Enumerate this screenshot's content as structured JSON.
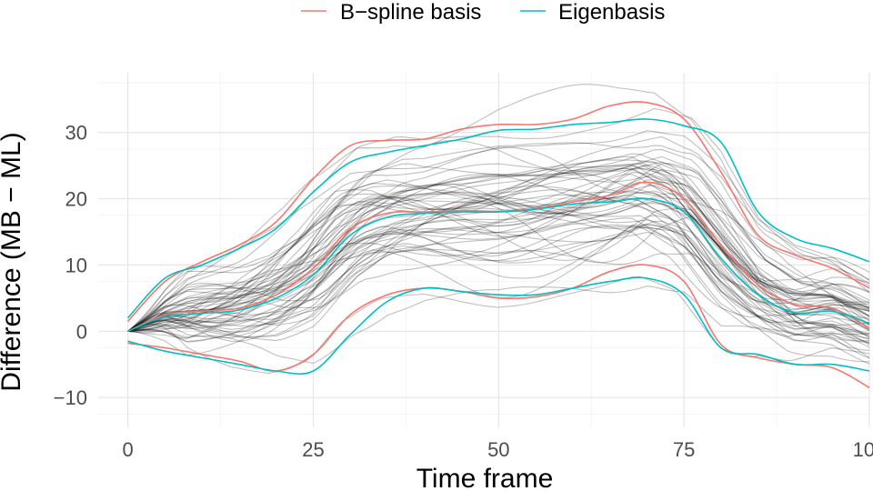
{
  "chart_data": {
    "type": "line",
    "title": "",
    "xlabel": "Time frame",
    "ylabel": "Difference (MB − ML)",
    "xlim": [
      -4,
      100
    ],
    "ylim": [
      -14.5,
      39
    ],
    "x_ticks": [
      0,
      25,
      50,
      75,
      100
    ],
    "x_tick_labels": [
      "0",
      "25",
      "50",
      "75",
      "100"
    ],
    "y_ticks": [
      -10,
      0,
      10,
      20,
      30
    ],
    "y_tick_labels": [
      "−10",
      "0",
      "10",
      "20",
      "30"
    ],
    "grid": true,
    "legend": {
      "position": "top",
      "entries": [
        {
          "label": "B−spline basis",
          "color": "#F8766D"
        },
        {
          "label": "Eigenbasis",
          "color": "#00BFC4"
        }
      ]
    },
    "band_x": [
      0,
      5,
      10,
      15,
      20,
      25,
      30,
      35,
      40,
      45,
      50,
      55,
      60,
      65,
      70,
      75,
      80,
      85,
      90,
      95,
      100
    ],
    "series": [
      {
        "group": "B−spline basis",
        "role": "upper",
        "color": "#F8766D",
        "values": [
          1.5,
          7.5,
          10.5,
          13,
          16.5,
          23,
          28,
          28.8,
          29,
          30.5,
          31.2,
          31.2,
          32,
          34,
          34.5,
          32,
          24,
          14.5,
          11.5,
          9.5,
          6.5
        ]
      },
      {
        "group": "B−spline basis",
        "role": "mean",
        "color": "#F8766D",
        "values": [
          0,
          2.5,
          3,
          3.5,
          5.5,
          9.5,
          15.5,
          17.8,
          18,
          18.2,
          18.1,
          18.5,
          19.5,
          20.5,
          22.5,
          20,
          13,
          7,
          4,
          3.5,
          0.5
        ]
      },
      {
        "group": "B−spline basis",
        "role": "lower",
        "color": "#F8766D",
        "values": [
          -1.8,
          -2.5,
          -3.5,
          -4.5,
          -6,
          -3.5,
          2.5,
          5.5,
          6.5,
          6,
          5,
          5.2,
          6.5,
          9,
          10,
          7.5,
          -2,
          -4,
          -5,
          -5.5,
          -8.5
        ]
      },
      {
        "group": "Eigenbasis",
        "role": "upper",
        "color": "#00BFC4",
        "values": [
          2,
          8,
          10,
          12.5,
          15.5,
          21,
          25.5,
          27,
          28,
          29,
          30.3,
          30.5,
          31.2,
          31.5,
          32,
          31,
          28.5,
          18,
          14,
          12.5,
          10.5
        ]
      },
      {
        "group": "Eigenbasis",
        "role": "mean",
        "color": "#00BFC4",
        "values": [
          0,
          2.2,
          2.7,
          3.2,
          5,
          8.5,
          14.5,
          17.2,
          17.8,
          18,
          18,
          18.4,
          19.2,
          19.5,
          20,
          18,
          11,
          5.5,
          2.8,
          3,
          1.2
        ]
      },
      {
        "group": "Eigenbasis",
        "role": "lower",
        "color": "#00BFC4",
        "values": [
          -1.5,
          -3,
          -4,
          -5,
          -6,
          -6,
          -0.5,
          4.5,
          6.5,
          6,
          5.5,
          5.5,
          6.5,
          7.5,
          8,
          5.5,
          -2.5,
          -3.5,
          -5,
          -5,
          -6
        ]
      }
    ],
    "background_curves": {
      "count": 60,
      "color": "#000000",
      "opacity": 0.25
    }
  }
}
